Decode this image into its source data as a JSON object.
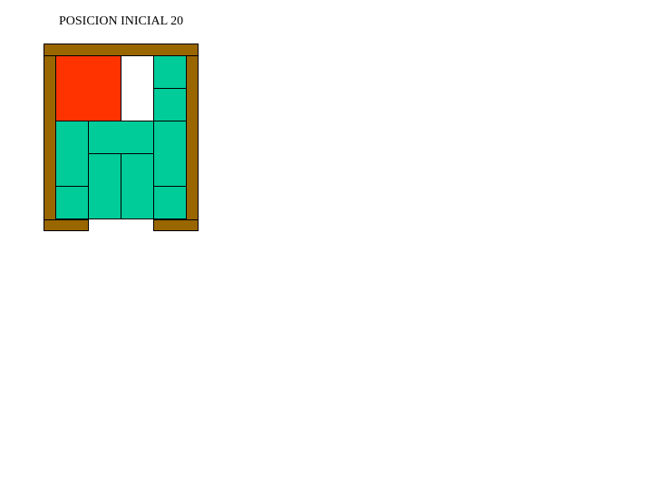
{
  "title": "POSICION INICIAL 20",
  "colors": {
    "frame": "#996600",
    "main_block": "#ff3300",
    "block": "#00cc99",
    "empty": "#ffffff"
  },
  "board": {
    "columns": 4,
    "rows": 5,
    "exit": "bottom-center"
  },
  "blocks": [
    {
      "name": "main-block",
      "col": 0,
      "row": 0,
      "w": 2,
      "h": 2,
      "type": "main_block"
    },
    {
      "name": "small-block",
      "col": 3,
      "row": 0,
      "w": 1,
      "h": 1,
      "type": "block"
    },
    {
      "name": "small-block",
      "col": 3,
      "row": 1,
      "w": 1,
      "h": 1,
      "type": "block"
    },
    {
      "name": "vertical-block",
      "col": 0,
      "row": 2,
      "w": 1,
      "h": 2,
      "type": "block"
    },
    {
      "name": "horizontal-block",
      "col": 1,
      "row": 2,
      "w": 2,
      "h": 1,
      "type": "block"
    },
    {
      "name": "vertical-block",
      "col": 3,
      "row": 2,
      "w": 1,
      "h": 2,
      "type": "block"
    },
    {
      "name": "vertical-block",
      "col": 1,
      "row": 3,
      "w": 1,
      "h": 2,
      "type": "block"
    },
    {
      "name": "vertical-block",
      "col": 2,
      "row": 3,
      "w": 1,
      "h": 2,
      "type": "block"
    },
    {
      "name": "small-block",
      "col": 0,
      "row": 4,
      "w": 1,
      "h": 1,
      "type": "block"
    },
    {
      "name": "small-block",
      "col": 3,
      "row": 4,
      "w": 1,
      "h": 1,
      "type": "block"
    }
  ]
}
